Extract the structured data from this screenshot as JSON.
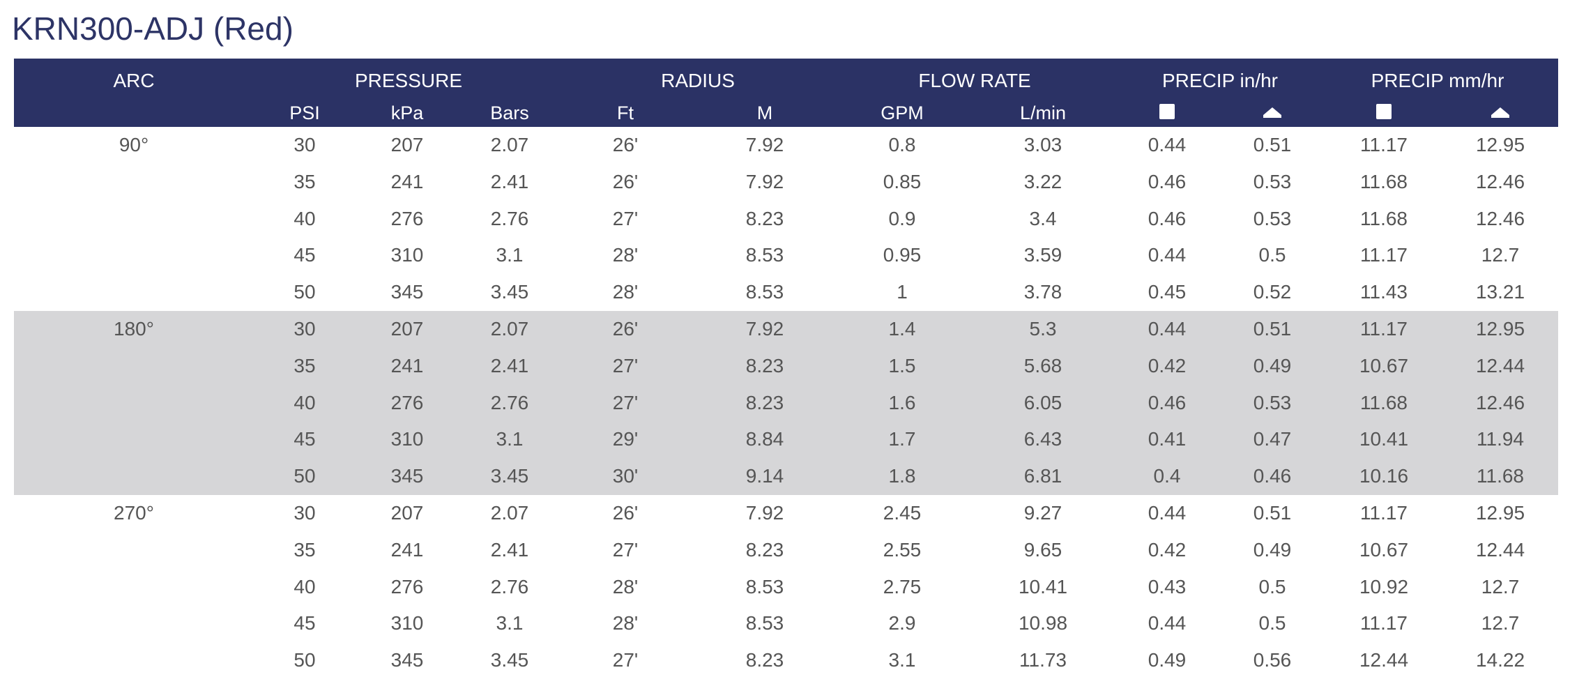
{
  "title": "KRN300-ADJ (Red)",
  "header": {
    "groups": [
      "ARC",
      "PRESSURE",
      "RADIUS",
      "FLOW RATE",
      "PRECIP in/hr",
      "PRECIP mm/hr"
    ],
    "sub": [
      "PSI",
      "kPa",
      "Bars",
      "Ft",
      "M",
      "GPM",
      "L/min"
    ],
    "icons": [
      "square-spacing-icon",
      "triangle-spacing-icon",
      "square-spacing-icon",
      "triangle-spacing-icon"
    ]
  },
  "colors": {
    "header_bg": "#2b3265",
    "shaded_bg": "#d6d6d8",
    "title": "#2d3466",
    "text": "#555555"
  },
  "groups": [
    {
      "arc": "90°",
      "rows": [
        [
          "30",
          "207",
          "2.07",
          "26'",
          "7.92",
          "0.8",
          "3.03",
          "0.44",
          "0.51",
          "11.17",
          "12.95"
        ],
        [
          "35",
          "241",
          "2.41",
          "26'",
          "7.92",
          "0.85",
          "3.22",
          "0.46",
          "0.53",
          "11.68",
          "12.46"
        ],
        [
          "40",
          "276",
          "2.76",
          "27'",
          "8.23",
          "0.9",
          "3.4",
          "0.46",
          "0.53",
          "11.68",
          "12.46"
        ],
        [
          "45",
          "310",
          "3.1",
          "28'",
          "8.53",
          "0.95",
          "3.59",
          "0.44",
          "0.5",
          "11.17",
          "12.7"
        ],
        [
          "50",
          "345",
          "3.45",
          "28'",
          "8.53",
          "1",
          "3.78",
          "0.45",
          "0.52",
          "11.43",
          "13.21"
        ]
      ]
    },
    {
      "arc": "180°",
      "rows": [
        [
          "30",
          "207",
          "2.07",
          "26'",
          "7.92",
          "1.4",
          "5.3",
          "0.44",
          "0.51",
          "11.17",
          "12.95"
        ],
        [
          "35",
          "241",
          "2.41",
          "27'",
          "8.23",
          "1.5",
          "5.68",
          "0.42",
          "0.49",
          "10.67",
          "12.44"
        ],
        [
          "40",
          "276",
          "2.76",
          "27'",
          "8.23",
          "1.6",
          "6.05",
          "0.46",
          "0.53",
          "11.68",
          "12.46"
        ],
        [
          "45",
          "310",
          "3.1",
          "29'",
          "8.84",
          "1.7",
          "6.43",
          "0.41",
          "0.47",
          "10.41",
          "11.94"
        ],
        [
          "50",
          "345",
          "3.45",
          "30'",
          "9.14",
          "1.8",
          "6.81",
          "0.4",
          "0.46",
          "10.16",
          "11.68"
        ]
      ]
    },
    {
      "arc": "270°",
      "rows": [
        [
          "30",
          "207",
          "2.07",
          "26'",
          "7.92",
          "2.45",
          "9.27",
          "0.44",
          "0.51",
          "11.17",
          "12.95"
        ],
        [
          "35",
          "241",
          "2.41",
          "27'",
          "8.23",
          "2.55",
          "9.65",
          "0.42",
          "0.49",
          "10.67",
          "12.44"
        ],
        [
          "40",
          "276",
          "2.76",
          "28'",
          "8.53",
          "2.75",
          "10.41",
          "0.43",
          "0.5",
          "10.92",
          "12.7"
        ],
        [
          "45",
          "310",
          "3.1",
          "28'",
          "8.53",
          "2.9",
          "10.98",
          "0.44",
          "0.5",
          "11.17",
          "12.7"
        ],
        [
          "50",
          "345",
          "3.45",
          "27'",
          "8.23",
          "3.1",
          "11.73",
          "0.49",
          "0.56",
          "12.44",
          "14.22"
        ]
      ]
    }
  ]
}
